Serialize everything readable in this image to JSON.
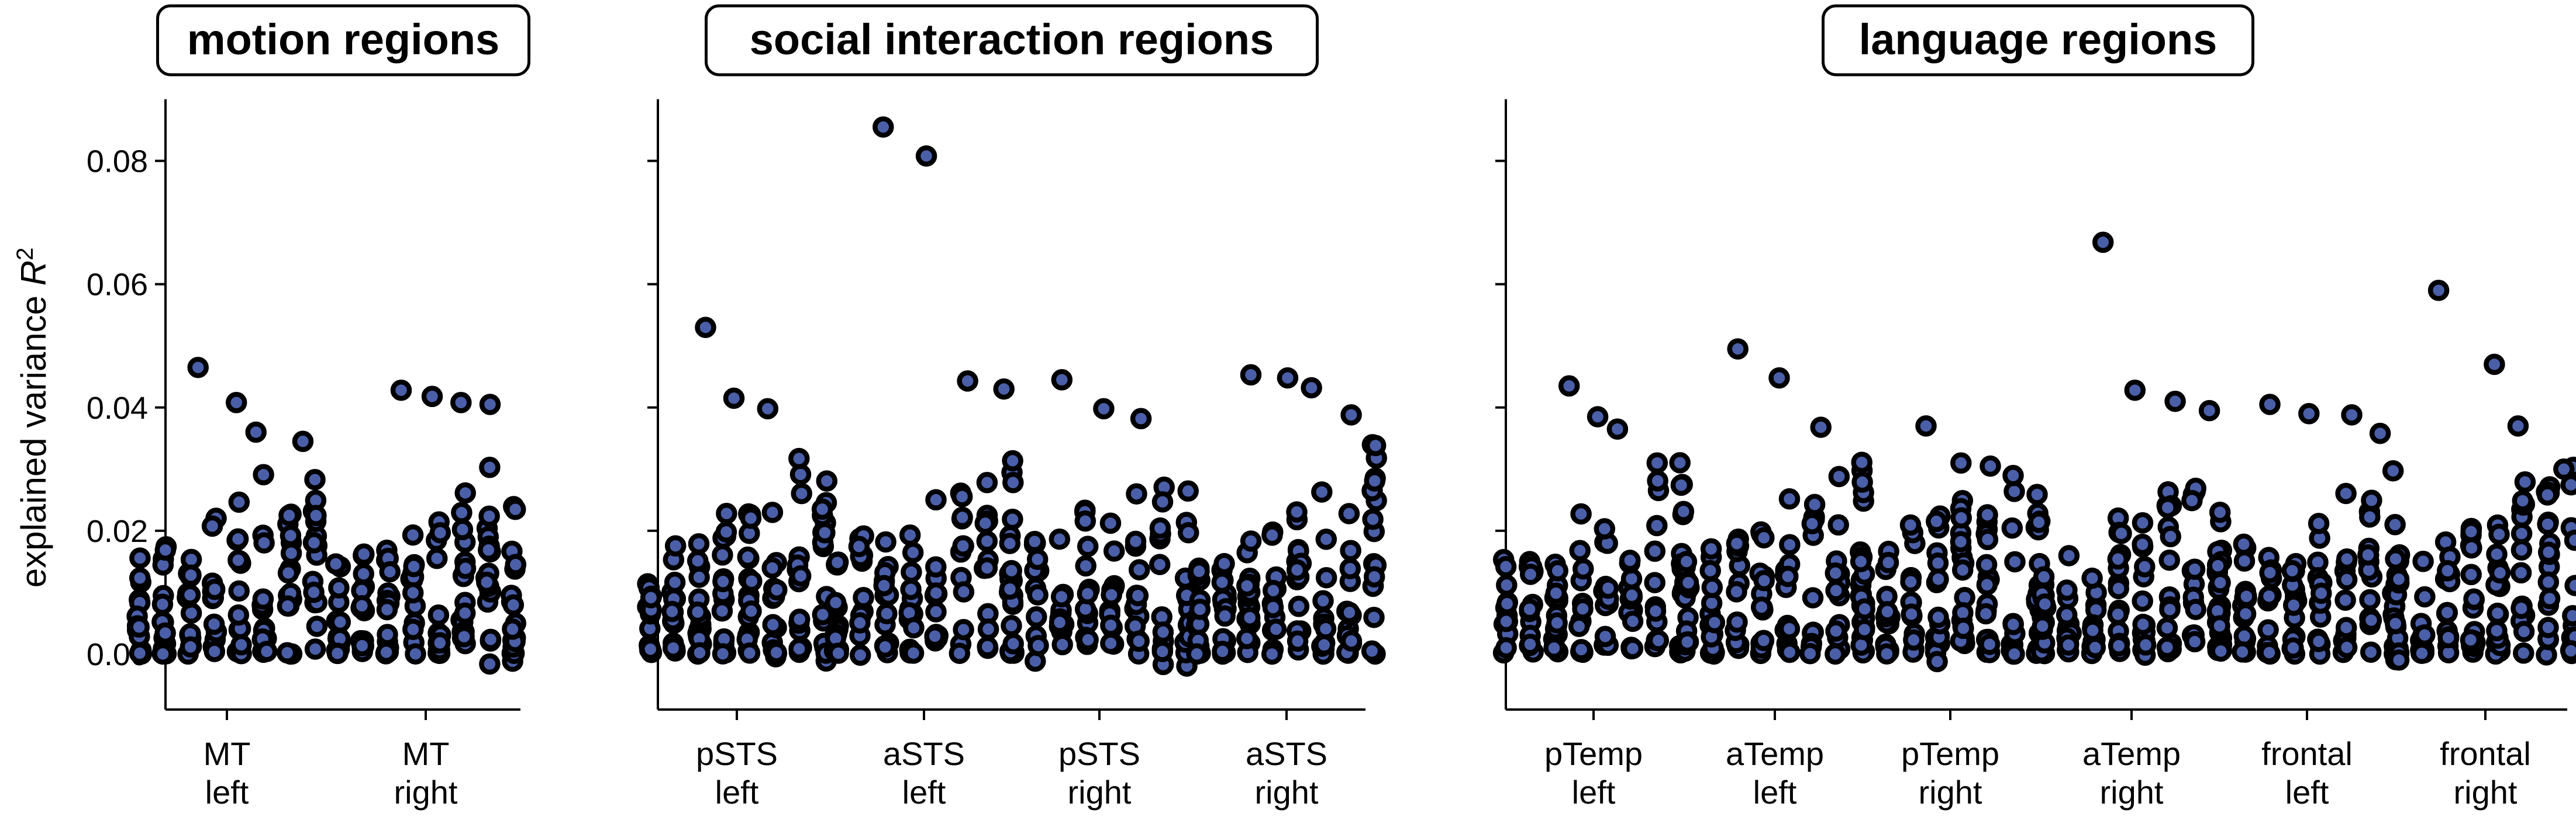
{
  "chart_data": {
    "type": "scatter",
    "ylabel": "explained variance R²",
    "ylim": [
      -0.009,
      0.09
    ],
    "yticks": [
      "0.00",
      "0.02",
      "0.04",
      "0.06",
      "0.08"
    ],
    "y_tick_values": [
      0,
      0.02,
      0.04,
      0.06,
      0.08
    ],
    "grid": false,
    "marker": {
      "shape": "ring",
      "edge_color": "#000000",
      "fill_color": "#4a5fa8"
    },
    "panels": [
      {
        "title": "motion regions",
        "categories": [
          "MT left",
          "MT right"
        ],
        "category_lines": [
          [
            "MT",
            "left"
          ],
          [
            "MT",
            "right"
          ]
        ],
        "series": [
          {
            "category": "MT left",
            "max": 0.0465,
            "outliers": [
              0.0465,
              0.0408,
              0.036,
              0.0345
            ],
            "values_summary": "dense points between 0.000 and 0.026"
          },
          {
            "category": "MT right",
            "max": 0.0428,
            "outliers": [
              0.0428,
              0.0418,
              0.0408,
              0.0405
            ],
            "values_summary": "dense points between 0.000 and 0.026"
          }
        ]
      },
      {
        "title": "social interaction regions",
        "categories": [
          "pSTS left",
          "aSTS left",
          "pSTS right",
          "aSTS right"
        ],
        "category_lines": [
          [
            "pSTS",
            "left"
          ],
          [
            "aSTS",
            "left"
          ],
          [
            "pSTS",
            "right"
          ],
          [
            "aSTS",
            "right"
          ]
        ],
        "series": [
          {
            "category": "pSTS left",
            "max": 0.053,
            "outliers": [
              0.053,
              0.0415,
              0.0398
            ],
            "values_summary": "dense points between 0.000 and 0.030"
          },
          {
            "category": "aSTS left",
            "max": 0.0855,
            "outliers": [
              0.0855,
              0.0808,
              0.0443,
              0.043
            ],
            "values_summary": "dense points between 0.000 and 0.030"
          },
          {
            "category": "pSTS right",
            "max": 0.0445,
            "outliers": [
              0.0445,
              0.0398,
              0.0382
            ],
            "values_summary": "dense points between 0.000 and 0.030"
          },
          {
            "category": "aSTS right",
            "max": 0.0453,
            "outliers": [
              0.0453,
              0.0448,
              0.0432,
              0.0388
            ],
            "values_summary": "dense points between 0.000 and 0.030"
          }
        ]
      },
      {
        "title": "language regions",
        "categories": [
          "pTemp left",
          "aTemp left",
          "pTemp right",
          "aTemp right",
          "frontal left",
          "frontal right"
        ],
        "category_lines": [
          [
            "pTemp",
            "left"
          ],
          [
            "aTemp",
            "left"
          ],
          [
            "pTemp",
            "right"
          ],
          [
            "aTemp",
            "right"
          ],
          [
            "frontal",
            "left"
          ],
          [
            "frontal",
            "right"
          ]
        ],
        "series": [
          {
            "category": "pTemp left",
            "max": 0.0435,
            "outliers": [
              0.0435,
              0.0385,
              0.0365
            ],
            "values_summary": "dense points between -0.003 and 0.030"
          },
          {
            "category": "aTemp left",
            "max": 0.0495,
            "outliers": [
              0.0495,
              0.0448,
              0.0368
            ],
            "values_summary": "dense points between 0.000 and 0.030"
          },
          {
            "category": "pTemp right",
            "max": 0.037,
            "outliers": [
              0.037,
              0.031,
              0.0305
            ],
            "values_summary": "dense points between -0.001 and 0.030"
          },
          {
            "category": "aTemp right",
            "max": 0.0668,
            "outliers": [
              0.0668,
              0.0428,
              0.041,
              0.0395
            ],
            "values_summary": "dense points between -0.002 and 0.030"
          },
          {
            "category": "frontal left",
            "max": 0.0405,
            "outliers": [
              0.0405,
              0.039,
              0.0388,
              0.0358
            ],
            "values_summary": "dense points between 0.000 and 0.030"
          },
          {
            "category": "frontal right",
            "max": 0.059,
            "outliers": [
              0.059,
              0.047,
              0.037,
              0.03
            ],
            "values_summary": "dense points between -0.005 and 0.030"
          }
        ]
      }
    ]
  }
}
